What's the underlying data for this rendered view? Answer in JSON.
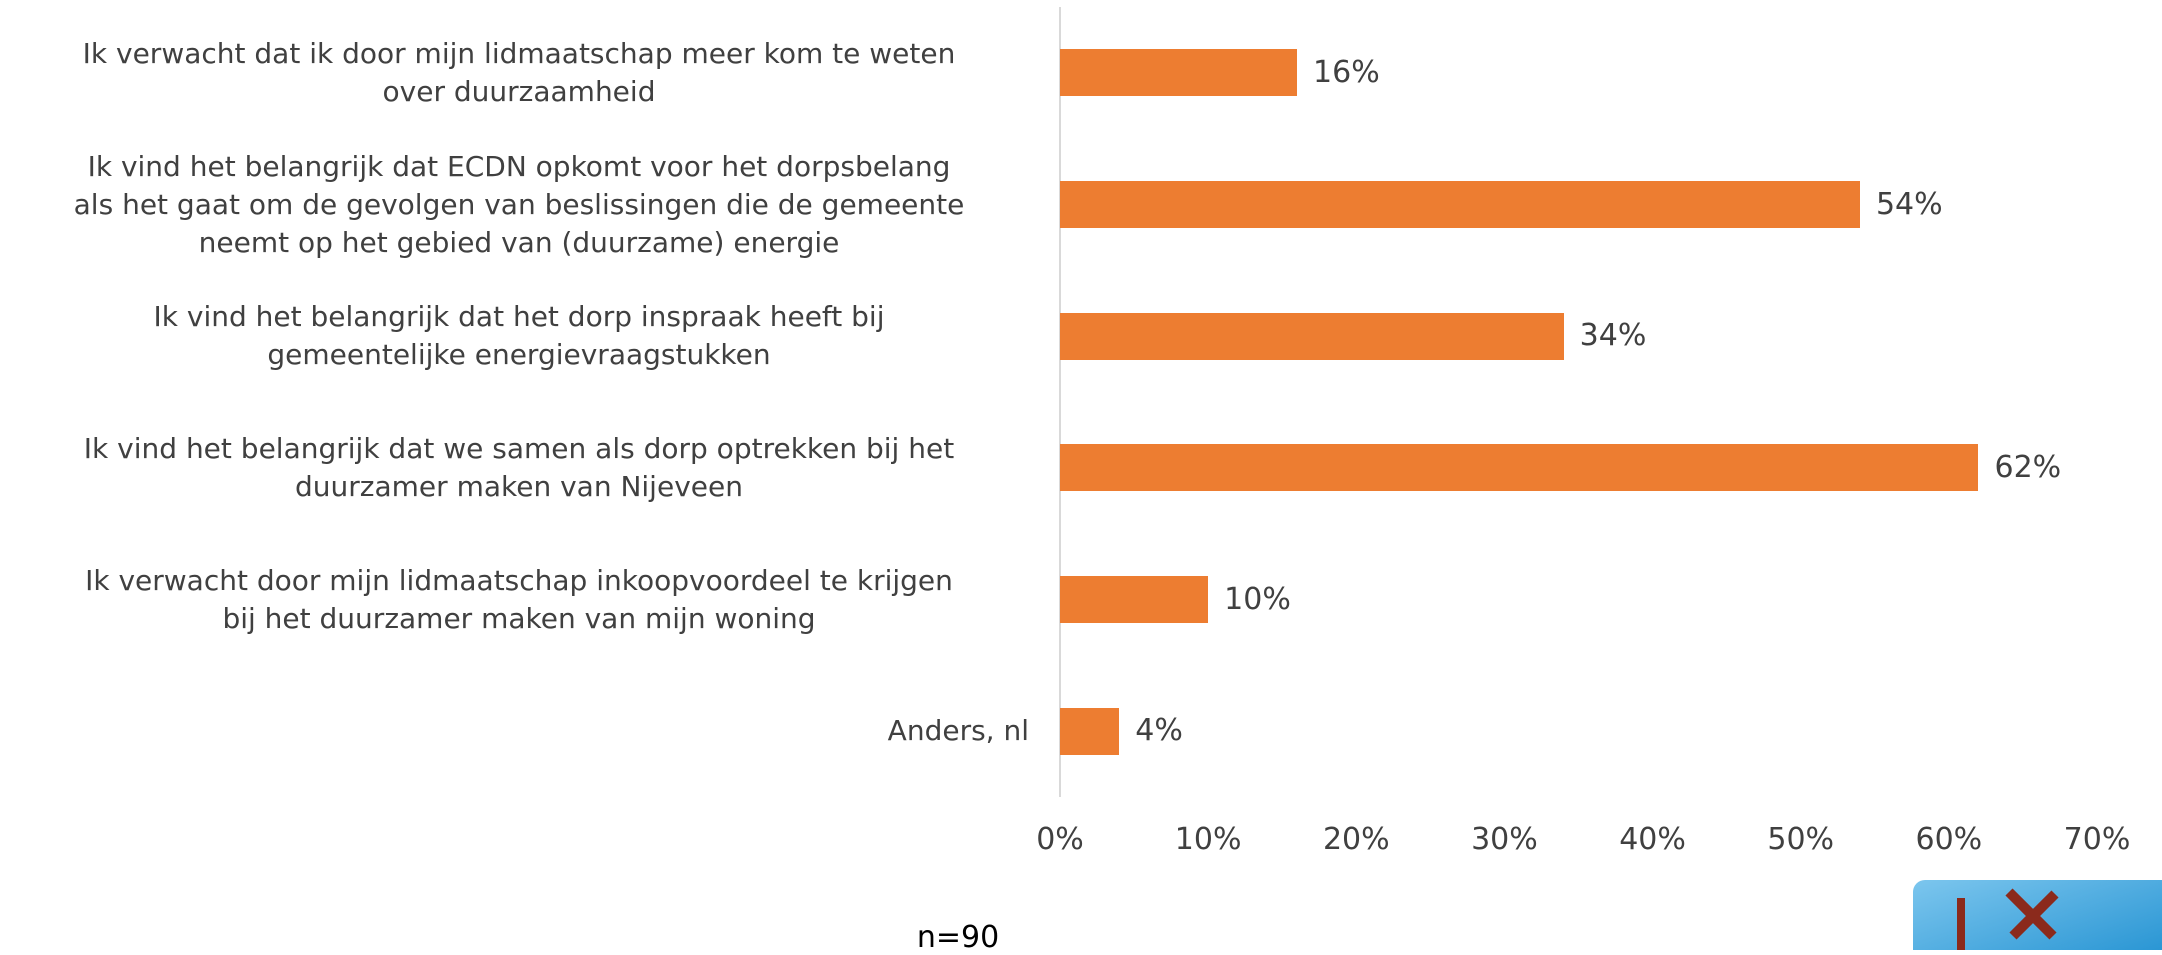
{
  "chart_data": {
    "type": "bar",
    "orientation": "horizontal",
    "categories": [
      "Ik verwacht dat ik door mijn lidmaatschap meer kom te weten\nover duurzaamheid",
      "Ik vind het belangrijk dat ECDN opkomt voor het dorpsbelang\nals het gaat om de gevolgen van beslissingen die de gemeente\nneemt op het gebied van (duurzame) energie",
      "Ik vind het belangrijk dat het dorp inspraak heeft bij\ngemeentelijke energievraagstukken",
      "Ik vind het belangrijk dat we samen als dorp optrekken bij het\nduurzamer maken van Nijeveen",
      "Ik verwacht door mijn lidmaatschap inkoopvoordeel te krijgen\nbij het duurzamer maken van mijn woning",
      "Anders, nl"
    ],
    "values": [
      16,
      54,
      34,
      62,
      10,
      4
    ],
    "value_labels": [
      "16%",
      "54%",
      "34%",
      "62%",
      "10%",
      "4%"
    ],
    "color": "#ed7d31",
    "xlim": [
      0,
      70
    ],
    "xticks": [
      {
        "value": 0,
        "label": "0%"
      },
      {
        "value": 10,
        "label": "10%"
      },
      {
        "value": 20,
        "label": "20%"
      },
      {
        "value": 30,
        "label": "30%"
      },
      {
        "value": 40,
        "label": "40%"
      },
      {
        "value": 50,
        "label": "50%"
      },
      {
        "value": 60,
        "label": "60%"
      },
      {
        "value": 70,
        "label": "70%"
      }
    ],
    "grid": false,
    "note": "n=90"
  }
}
